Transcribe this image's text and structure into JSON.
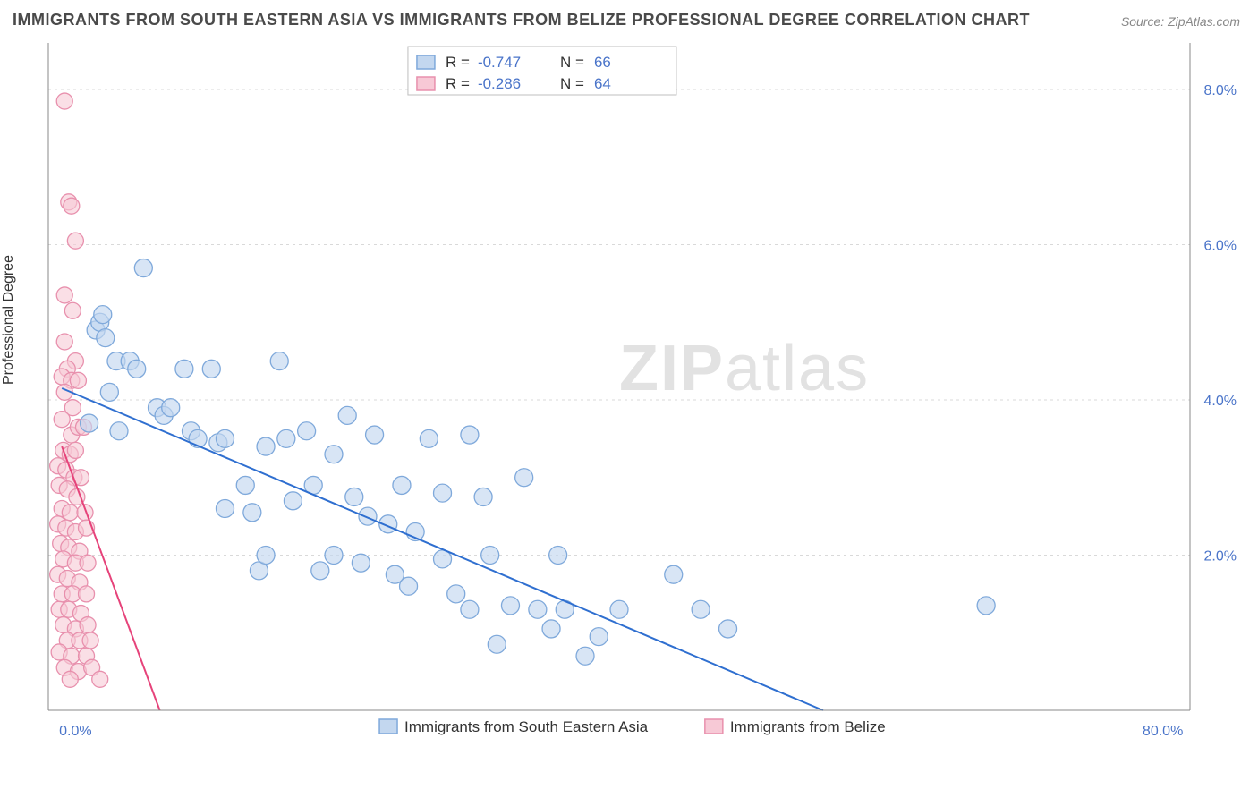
{
  "title": "IMMIGRANTS FROM SOUTH EASTERN ASIA VS IMMIGRANTS FROM BELIZE PROFESSIONAL DEGREE CORRELATION CHART",
  "source": "Source: ZipAtlas.com",
  "ylabel": "Professional Degree",
  "watermark_bold": "ZIP",
  "watermark_rest": "atlas",
  "chart": {
    "type": "scatter",
    "background_color": "#ffffff",
    "grid_color": "#d9d9d9",
    "axis_color": "#888888",
    "tick_color": "#4a74c9",
    "xlim": [
      -2,
      82
    ],
    "ylim": [
      0,
      8.6
    ],
    "yticks": [
      2.0,
      4.0,
      6.0,
      8.0
    ],
    "ytick_labels": [
      "2.0%",
      "4.0%",
      "6.0%",
      "8.0%"
    ],
    "xticks": [
      0.0,
      80.0
    ],
    "xtick_labels": [
      "0.0%",
      "80.0%"
    ],
    "marker_radius": 10,
    "marker_radius_small": 9,
    "trend_line_width": 2,
    "series": [
      {
        "name": "Immigrants from South Eastern Asia",
        "fill": "#c3d7ef",
        "stroke": "#7fa9db",
        "fill_opacity": 0.65,
        "trend_color": "#2f6fd0",
        "trend": {
          "x1": -1,
          "y1": 4.15,
          "x2": 55,
          "y2": 0.0
        },
        "R_label": "R =",
        "R_value": "-0.747",
        "N_label": "N =",
        "N_value": "66",
        "points": [
          [
            1.0,
            3.7
          ],
          [
            1.5,
            4.9
          ],
          [
            1.8,
            5.0
          ],
          [
            2.0,
            5.1
          ],
          [
            2.2,
            4.8
          ],
          [
            2.5,
            4.1
          ],
          [
            3.0,
            4.5
          ],
          [
            3.2,
            3.6
          ],
          [
            5.0,
            5.7
          ],
          [
            4.0,
            4.5
          ],
          [
            4.5,
            4.4
          ],
          [
            6.0,
            3.9
          ],
          [
            6.5,
            3.8
          ],
          [
            7.0,
            3.9
          ],
          [
            8.0,
            4.4
          ],
          [
            8.5,
            3.6
          ],
          [
            9.0,
            3.5
          ],
          [
            10.0,
            4.4
          ],
          [
            10.5,
            3.45
          ],
          [
            11.0,
            3.5
          ],
          [
            11.0,
            2.6
          ],
          [
            12.5,
            2.9
          ],
          [
            13.0,
            2.55
          ],
          [
            13.5,
            1.8
          ],
          [
            14.0,
            3.4
          ],
          [
            14.0,
            2.0
          ],
          [
            15.0,
            4.5
          ],
          [
            15.5,
            3.5
          ],
          [
            16.0,
            2.7
          ],
          [
            17.0,
            3.6
          ],
          [
            17.5,
            2.9
          ],
          [
            18.0,
            1.8
          ],
          [
            19.0,
            3.3
          ],
          [
            19.0,
            2.0
          ],
          [
            20.0,
            3.8
          ],
          [
            20.5,
            2.75
          ],
          [
            21.0,
            1.9
          ],
          [
            21.5,
            2.5
          ],
          [
            22.0,
            3.55
          ],
          [
            23.0,
            2.4
          ],
          [
            23.5,
            1.75
          ],
          [
            24.0,
            2.9
          ],
          [
            24.5,
            1.6
          ],
          [
            25.0,
            2.3
          ],
          [
            26.0,
            3.5
          ],
          [
            27.0,
            2.8
          ],
          [
            27.0,
            1.95
          ],
          [
            28.0,
            1.5
          ],
          [
            29.0,
            1.3
          ],
          [
            29.0,
            3.55
          ],
          [
            30.0,
            2.75
          ],
          [
            30.5,
            2.0
          ],
          [
            31.0,
            0.85
          ],
          [
            32.0,
            1.35
          ],
          [
            33.0,
            3.0
          ],
          [
            34.0,
            1.3
          ],
          [
            35.0,
            1.05
          ],
          [
            35.5,
            2.0
          ],
          [
            36.0,
            1.3
          ],
          [
            37.5,
            0.7
          ],
          [
            38.5,
            0.95
          ],
          [
            40.0,
            1.3
          ],
          [
            44.0,
            1.75
          ],
          [
            46.0,
            1.3
          ],
          [
            48.0,
            1.05
          ],
          [
            67.0,
            1.35
          ]
        ]
      },
      {
        "name": "Immigrants from Belize",
        "fill": "#f7c9d6",
        "stroke": "#e890ad",
        "fill_opacity": 0.6,
        "trend_color": "#e6437a",
        "trend": {
          "x1": -1,
          "y1": 3.4,
          "x2": 6.2,
          "y2": 0.0
        },
        "R_label": "R =",
        "R_value": "-0.286",
        "N_label": "N =",
        "N_value": "64",
        "points": [
          [
            -0.8,
            7.85
          ],
          [
            -0.5,
            6.55
          ],
          [
            -0.3,
            6.5
          ],
          [
            0.0,
            6.05
          ],
          [
            -0.8,
            5.35
          ],
          [
            -0.2,
            5.15
          ],
          [
            -0.8,
            4.75
          ],
          [
            0.0,
            4.5
          ],
          [
            -0.6,
            4.4
          ],
          [
            -1.0,
            4.3
          ],
          [
            -0.3,
            4.25
          ],
          [
            0.2,
            4.25
          ],
          [
            -0.8,
            4.1
          ],
          [
            -0.2,
            3.9
          ],
          [
            -1.0,
            3.75
          ],
          [
            -0.3,
            3.55
          ],
          [
            0.2,
            3.65
          ],
          [
            0.6,
            3.65
          ],
          [
            -0.9,
            3.35
          ],
          [
            -0.4,
            3.3
          ],
          [
            0.0,
            3.35
          ],
          [
            -1.3,
            3.15
          ],
          [
            -0.7,
            3.1
          ],
          [
            -0.1,
            3.0
          ],
          [
            0.4,
            3.0
          ],
          [
            -1.2,
            2.9
          ],
          [
            -0.6,
            2.85
          ],
          [
            0.1,
            2.75
          ],
          [
            -1.0,
            2.6
          ],
          [
            -0.4,
            2.55
          ],
          [
            0.7,
            2.55
          ],
          [
            -1.3,
            2.4
          ],
          [
            -0.7,
            2.35
          ],
          [
            0.0,
            2.3
          ],
          [
            0.8,
            2.35
          ],
          [
            -1.1,
            2.15
          ],
          [
            -0.5,
            2.1
          ],
          [
            0.3,
            2.05
          ],
          [
            -0.9,
            1.95
          ],
          [
            0.0,
            1.9
          ],
          [
            0.9,
            1.9
          ],
          [
            -1.3,
            1.75
          ],
          [
            -0.6,
            1.7
          ],
          [
            0.3,
            1.65
          ],
          [
            -1.0,
            1.5
          ],
          [
            -0.2,
            1.5
          ],
          [
            0.8,
            1.5
          ],
          [
            -1.2,
            1.3
          ],
          [
            -0.5,
            1.3
          ],
          [
            0.4,
            1.25
          ],
          [
            -0.9,
            1.1
          ],
          [
            0.0,
            1.05
          ],
          [
            0.9,
            1.1
          ],
          [
            -0.6,
            0.9
          ],
          [
            0.3,
            0.9
          ],
          [
            1.1,
            0.9
          ],
          [
            -1.2,
            0.75
          ],
          [
            -0.3,
            0.7
          ],
          [
            0.8,
            0.7
          ],
          [
            -0.8,
            0.55
          ],
          [
            0.2,
            0.5
          ],
          [
            1.2,
            0.55
          ],
          [
            -0.4,
            0.4
          ],
          [
            1.8,
            0.4
          ]
        ]
      }
    ],
    "top_legend": {
      "box_stroke": "#bfbfbf",
      "box_fill": "#ffffff",
      "label_color": "#333333",
      "value_color": "#4a74c9"
    },
    "bottom_legend": {
      "items": [
        {
          "label": "Immigrants from South Eastern Asia",
          "fill": "#c3d7ef",
          "stroke": "#7fa9db"
        },
        {
          "label": "Immigrants from Belize",
          "fill": "#f7c9d6",
          "stroke": "#e890ad"
        }
      ]
    }
  }
}
